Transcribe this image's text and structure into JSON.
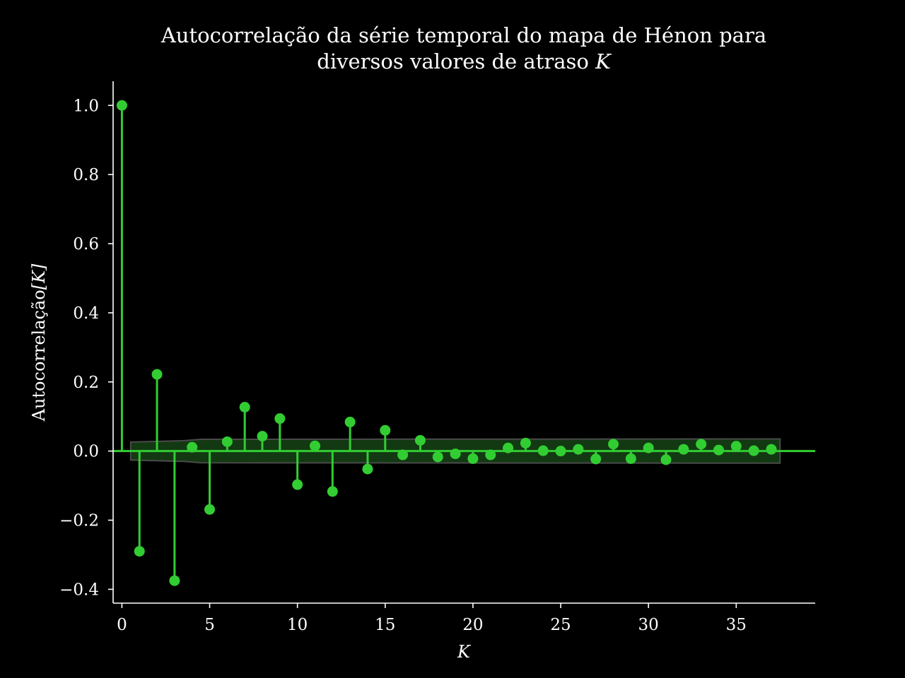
{
  "colors": {
    "background": "#000000",
    "foreground": "#ffffff",
    "stem": "#32cd32",
    "band_fill": "#1f5f1f",
    "band_edge": "#4a4a4a"
  },
  "chart_data": {
    "type": "stem",
    "title_line1": "Autocorrelação da série temporal do mapa de Hénon para",
    "title_line2": "diversos valores de atraso ",
    "title_symbol": "K",
    "xlabel": "K",
    "ylabel_text": "Autocorrelação",
    "ylabel_symbol": "[K]",
    "xlim": [
      -0.5,
      39.5
    ],
    "ylim": [
      -0.44,
      1.07
    ],
    "x_ticks": [
      0,
      5,
      10,
      15,
      20,
      25,
      30,
      35
    ],
    "x_tick_labels": [
      "0",
      "5",
      "10",
      "15",
      "20",
      "25",
      "30",
      "35"
    ],
    "y_ticks": [
      -0.4,
      -0.2,
      0.0,
      0.2,
      0.4,
      0.6,
      0.8,
      1.0
    ],
    "y_tick_labels": [
      "−0.4",
      "−0.2",
      "0.0",
      "0.2",
      "0.4",
      "0.6",
      "0.8",
      "1.0"
    ],
    "lags": [
      0,
      1,
      2,
      3,
      4,
      5,
      6,
      7,
      8,
      9,
      10,
      11,
      12,
      13,
      14,
      15,
      16,
      17,
      18,
      19,
      20,
      21,
      22,
      23,
      24,
      25,
      26,
      27,
      28,
      29,
      30,
      31,
      32,
      33,
      34,
      35,
      36,
      37
    ],
    "values": [
      1.0,
      -0.29,
      0.222,
      -0.375,
      0.011,
      -0.169,
      0.027,
      0.127,
      0.043,
      0.094,
      -0.097,
      0.015,
      -0.117,
      0.084,
      -0.052,
      0.06,
      -0.011,
      0.031,
      -0.017,
      -0.008,
      -0.022,
      -0.011,
      0.009,
      0.023,
      0.001,
      0.0,
      0.005,
      -0.023,
      0.02,
      -0.022,
      0.009,
      -0.025,
      0.005,
      0.02,
      0.003,
      0.014,
      0.001,
      0.005
    ],
    "confidence_band": {
      "x": [
        0.5,
        3.5,
        4.5,
        37.5
      ],
      "upper": [
        0.026,
        0.03,
        0.034,
        0.035
      ],
      "lower": [
        -0.026,
        -0.03,
        -0.034,
        -0.035
      ]
    }
  }
}
